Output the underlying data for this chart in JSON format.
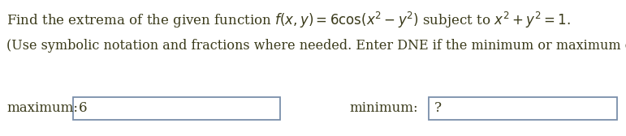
{
  "line1": "Find the extrema of the given function $f(x, y) = 6\\cos(x^2 - y^2)$ subject to $x^2 + y^2 = 1.$",
  "line2": "(Use symbolic notation and fractions where needed. Enter DNE if the minimum or maximum does not exist.)",
  "max_label": "maximum:",
  "max_value": "6",
  "min_label": "minimum:",
  "min_value": "?",
  "text_color": "#3a3a1a",
  "box_edge_color": "#7a8faa",
  "bg_color": "#ffffff",
  "fs_line1": 12.0,
  "fs_line2": 11.5,
  "fs_label": 12.0,
  "fs_value": 12.0
}
